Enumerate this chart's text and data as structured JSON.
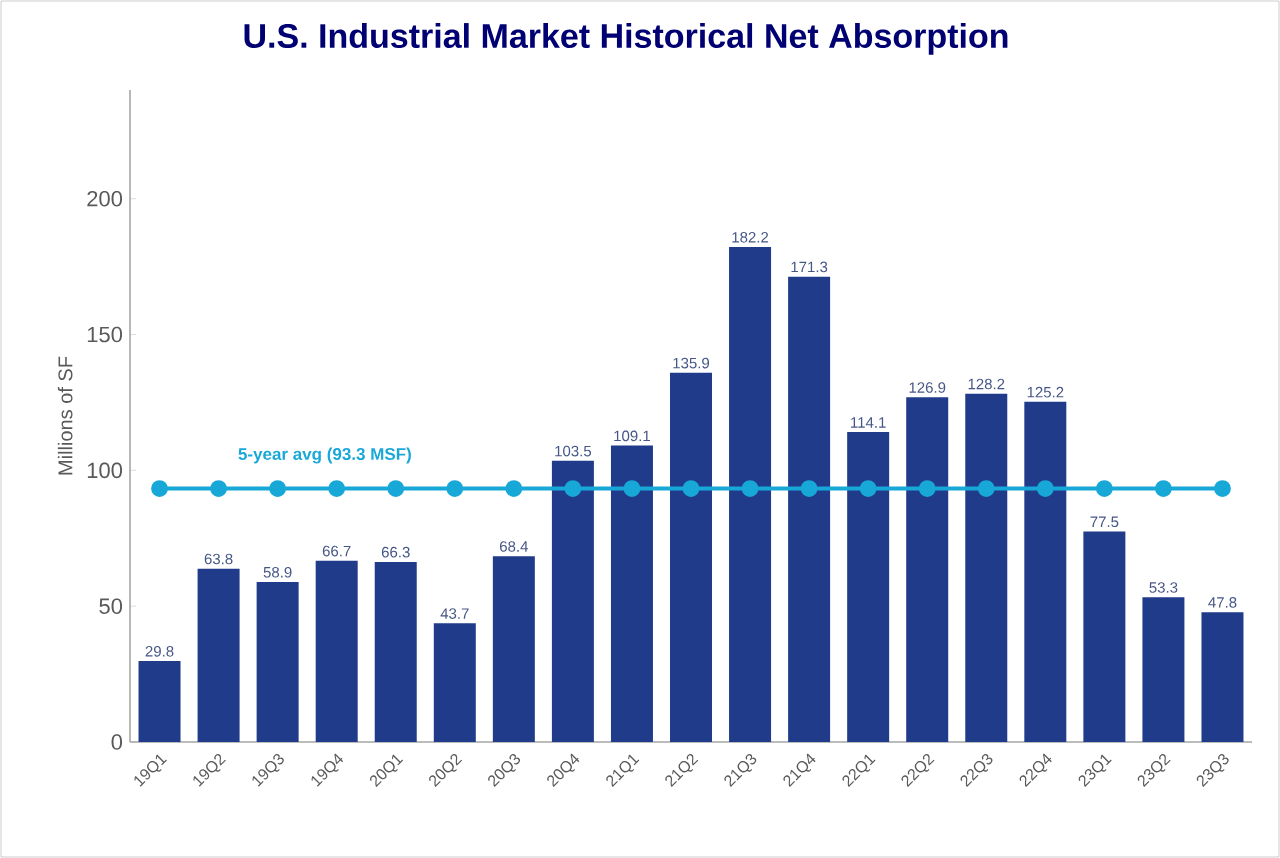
{
  "chart_data": {
    "type": "bar",
    "title": "U.S. Industrial Market Historical Net Absorption",
    "ylabel": "Millions of SF",
    "categories": [
      "19Q1",
      "19Q2",
      "19Q3",
      "19Q4",
      "20Q1",
      "20Q2",
      "20Q3",
      "20Q4",
      "21Q1",
      "21Q2",
      "21Q3",
      "21Q4",
      "22Q1",
      "22Q2",
      "22Q3",
      "22Q4",
      "23Q1",
      "23Q2",
      "23Q3"
    ],
    "series": [
      {
        "color": "#1f3b8a",
        "values": [
          29.8,
          63.8,
          58.9,
          66.7,
          66.3,
          43.7,
          68.4,
          103.5,
          109.1,
          135.9,
          182.2,
          171.3,
          114.1,
          126.9,
          128.2,
          125.2,
          77.5,
          53.3,
          47.8
        ],
        "value_labels": [
          "29.8",
          "63.8",
          "58.9",
          "66.7",
          "66.3",
          "43.7",
          "68.4",
          "103.5",
          "109.1",
          "135.9",
          "182.2",
          "171.3",
          "114.1",
          "126.9",
          "128.2",
          "125.2",
          "77.5",
          "53.3",
          "47.8"
        ]
      },
      {
        "type": "line",
        "name": "5-year avg (93.3 MSF)",
        "color": "#18a8d8",
        "marker": "circle",
        "values": [
          93.3,
          93.3,
          93.3,
          93.3,
          93.3,
          93.3,
          93.3,
          93.3,
          93.3,
          93.3,
          93.3,
          93.3,
          93.3,
          93.3,
          93.3,
          93.3,
          93.3,
          93.3,
          93.3
        ]
      }
    ],
    "ylim": [
      0,
      240
    ],
    "yticks": [
      0,
      50,
      100,
      150,
      200
    ]
  }
}
